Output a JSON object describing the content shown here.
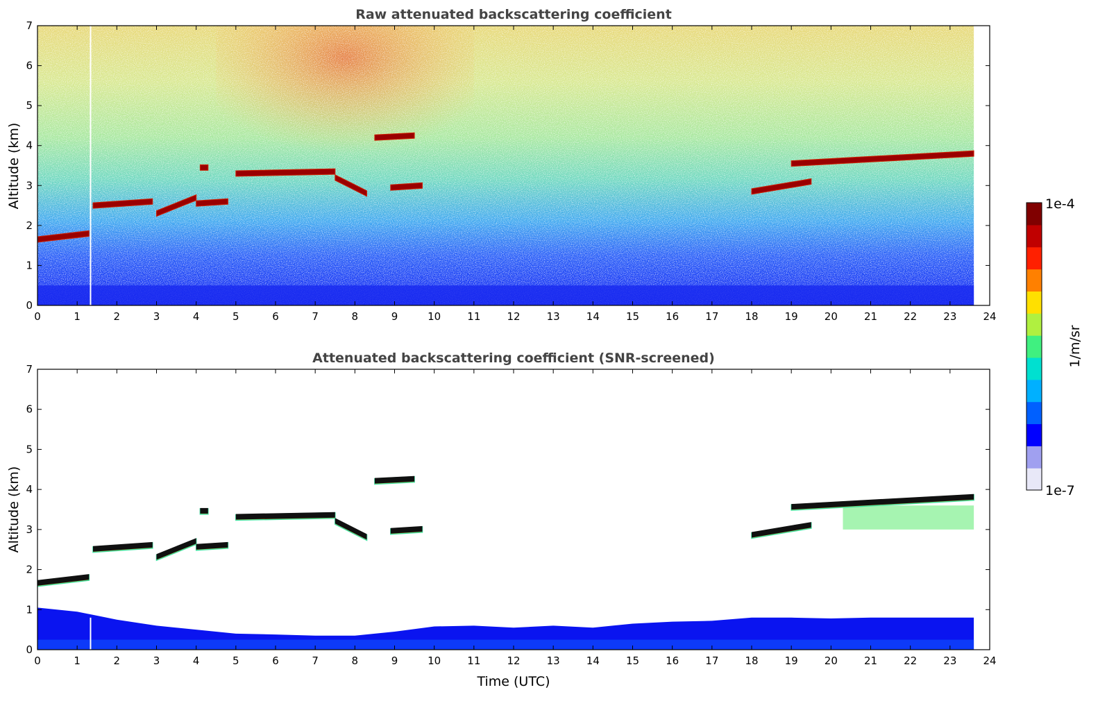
{
  "chart_data": [
    {
      "type": "heatmap",
      "title": "Raw attenuated backscattering coefficient",
      "xlabel": "",
      "ylabel": "Altitude (km)",
      "xlim": [
        0,
        24
      ],
      "ylim": [
        0,
        7
      ],
      "x_ticks": [
        0,
        1,
        2,
        3,
        4,
        5,
        6,
        7,
        8,
        9,
        10,
        11,
        12,
        13,
        14,
        15,
        16,
        17,
        18,
        19,
        20,
        21,
        22,
        23,
        24
      ],
      "y_ticks": [
        0,
        1,
        2,
        3,
        4,
        5,
        6,
        7
      ],
      "data_end_time": 23.6,
      "screened": false,
      "cloud_layers": [
        {
          "t": [
            0,
            1.3
          ],
          "alt": [
            1.65,
            1.8
          ]
        },
        {
          "t": [
            1.4,
            2.9
          ],
          "alt": [
            2.5,
            2.6
          ]
        },
        {
          "t": [
            3.0,
            4.0
          ],
          "alt": [
            2.3,
            2.7
          ]
        },
        {
          "t": [
            4.0,
            4.8
          ],
          "alt": [
            2.55,
            2.6
          ]
        },
        {
          "t": [
            4.1,
            4.3
          ],
          "alt": [
            3.45,
            3.45
          ]
        },
        {
          "t": [
            5.0,
            7.5
          ],
          "alt": [
            3.3,
            3.35
          ]
        },
        {
          "t": [
            7.5,
            8.3
          ],
          "alt": [
            3.2,
            2.8
          ]
        },
        {
          "t": [
            8.5,
            9.5
          ],
          "alt": [
            4.2,
            4.25
          ]
        },
        {
          "t": [
            8.9,
            9.7
          ],
          "alt": [
            2.95,
            3.0
          ]
        },
        {
          "t": [
            18.0,
            19.5
          ],
          "alt": [
            2.85,
            3.1
          ]
        },
        {
          "t": [
            19.0,
            23.6
          ],
          "alt": [
            3.55,
            3.8
          ]
        }
      ]
    },
    {
      "type": "heatmap",
      "title": "Attenuated backscattering coefficient (SNR-screened)",
      "xlabel": "Time (UTC)",
      "ylabel": "Altitude (km)",
      "xlim": [
        0,
        24
      ],
      "ylim": [
        0,
        7
      ],
      "x_ticks": [
        0,
        1,
        2,
        3,
        4,
        5,
        6,
        7,
        8,
        9,
        10,
        11,
        12,
        13,
        14,
        15,
        16,
        17,
        18,
        19,
        20,
        21,
        22,
        23,
        24
      ],
      "y_ticks": [
        0,
        1,
        2,
        3,
        4,
        5,
        6,
        7
      ],
      "data_end_time": 23.6,
      "screened": true,
      "cloud_layers": [
        {
          "t": [
            0,
            1.3
          ],
          "alt": [
            1.65,
            1.8
          ]
        },
        {
          "t": [
            1.4,
            2.9
          ],
          "alt": [
            2.5,
            2.6
          ]
        },
        {
          "t": [
            3.0,
            4.0
          ],
          "alt": [
            2.3,
            2.7
          ]
        },
        {
          "t": [
            4.0,
            4.8
          ],
          "alt": [
            2.55,
            2.6
          ]
        },
        {
          "t": [
            4.1,
            4.3
          ],
          "alt": [
            3.45,
            3.45
          ]
        },
        {
          "t": [
            5.0,
            7.5
          ],
          "alt": [
            3.3,
            3.35
          ]
        },
        {
          "t": [
            7.5,
            8.3
          ],
          "alt": [
            3.2,
            2.8
          ]
        },
        {
          "t": [
            8.5,
            9.5
          ],
          "alt": [
            4.2,
            4.25
          ]
        },
        {
          "t": [
            8.9,
            9.7
          ],
          "alt": [
            2.95,
            3.0
          ]
        },
        {
          "t": [
            18.0,
            19.5
          ],
          "alt": [
            2.85,
            3.1
          ]
        },
        {
          "t": [
            19.0,
            23.6
          ],
          "alt": [
            3.55,
            3.8
          ]
        }
      ]
    }
  ],
  "colorbar": {
    "label": "1/m/sr",
    "min_label": "1e-7",
    "max_label": "1e-4",
    "colors": [
      "#e8e8f8",
      "#a0a0f0",
      "#0000ff",
      "#0060ff",
      "#00b0ff",
      "#00e0d0",
      "#40f080",
      "#b0f040",
      "#ffe000",
      "#ff8000",
      "#ff2000",
      "#c00000",
      "#800000"
    ]
  }
}
